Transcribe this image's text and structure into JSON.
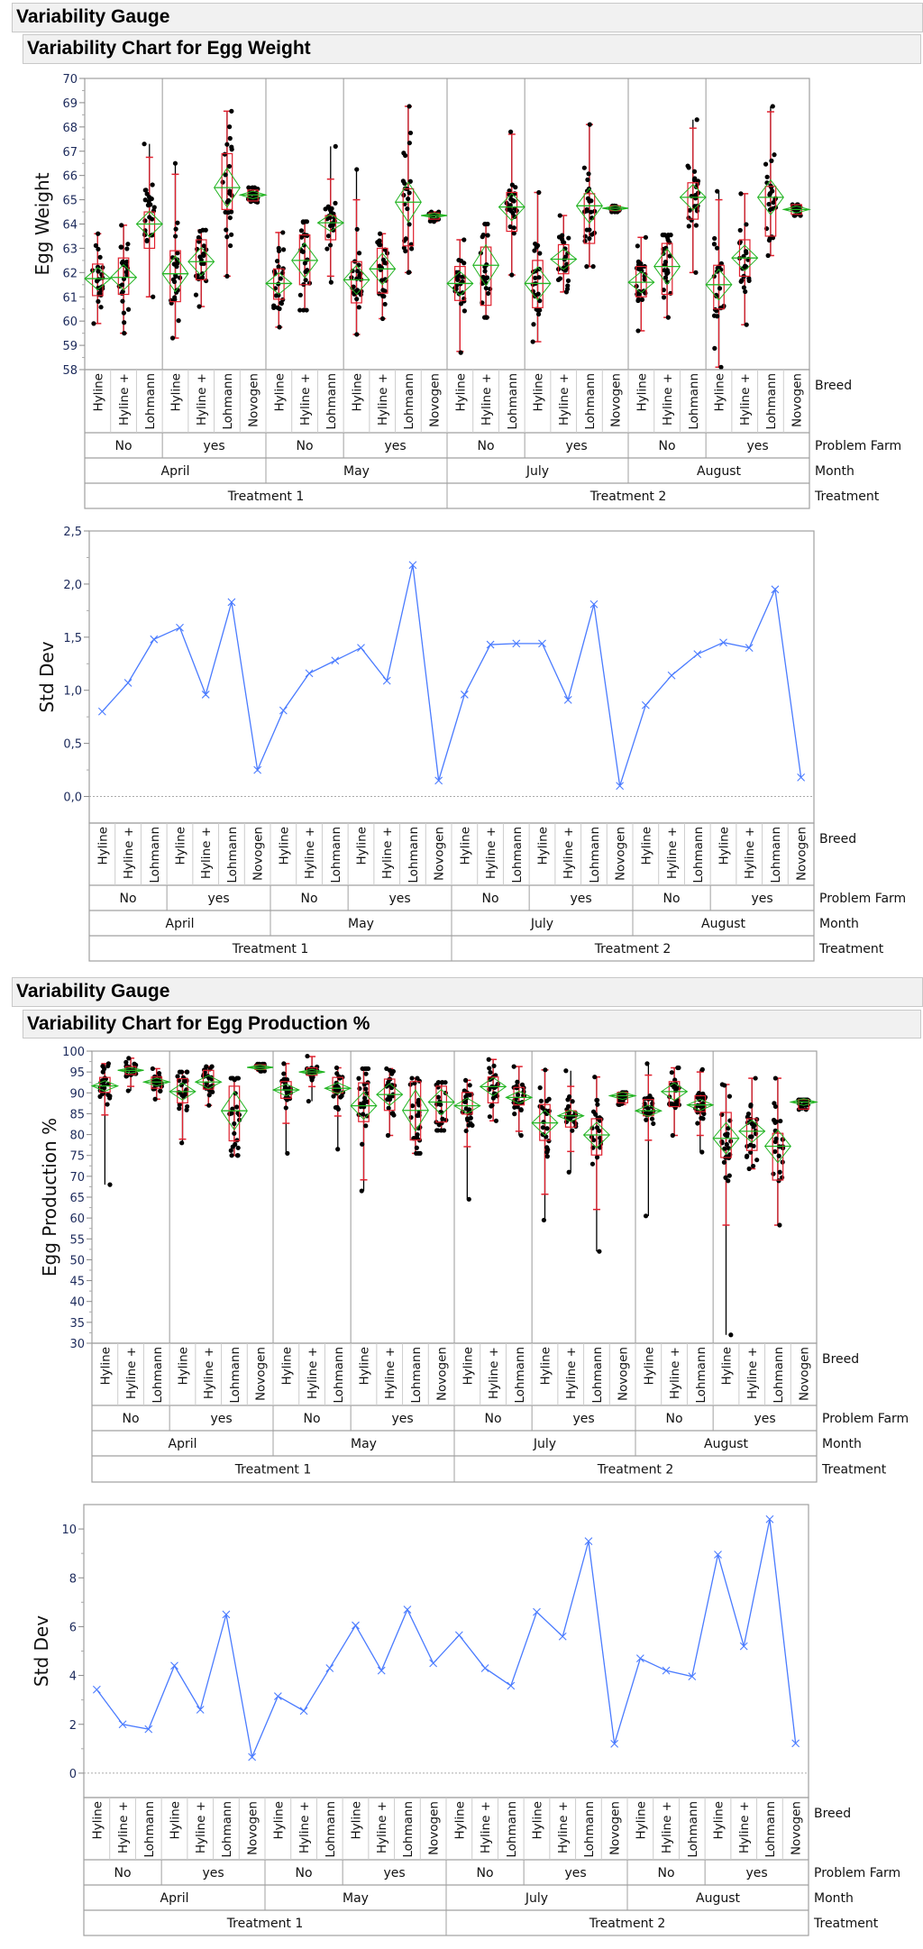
{
  "sections": [
    {
      "title": "Variability Gauge",
      "subtitle": "Variability Chart for Egg Weight"
    },
    {
      "title": "Variability Gauge",
      "subtitle": "Variability Chart for Egg Production %"
    }
  ],
  "factor_names": [
    "Breed",
    "Problem Farm",
    "Month",
    "Treatment"
  ],
  "factors": [
    {
      "treatment": "Treatment 1",
      "months": [
        {
          "month": "April",
          "farms": [
            {
              "farm": "No",
              "breeds": [
                "Hyline",
                "Hyline +",
                "Lohmann"
              ]
            },
            {
              "farm": "yes",
              "breeds": [
                "Hyline",
                "Hyline +",
                "Lohmann",
                "Novogen"
              ]
            }
          ]
        },
        {
          "month": "May",
          "farms": [
            {
              "farm": "No",
              "breeds": [
                "Hyline",
                "Hyline +",
                "Lohmann"
              ]
            },
            {
              "farm": "yes",
              "breeds": [
                "Hyline",
                "Hyline +",
                "Lohmann",
                "Novogen"
              ]
            }
          ]
        }
      ]
    },
    {
      "treatment": "Treatment 2",
      "months": [
        {
          "month": "July",
          "farms": [
            {
              "farm": "No",
              "breeds": [
                "Hyline",
                "Hyline +",
                "Lohmann"
              ]
            },
            {
              "farm": "yes",
              "breeds": [
                "Hyline",
                "Hyline +",
                "Lohmann",
                "Novogen"
              ]
            }
          ]
        },
        {
          "month": "August",
          "farms": [
            {
              "farm": "No",
              "breeds": [
                "Hyline",
                "Hyline +",
                "Lohmann"
              ]
            },
            {
              "farm": "yes",
              "breeds": [
                "Hyline",
                "Hyline +",
                "Lohmann",
                "Novogen"
              ]
            }
          ]
        }
      ]
    }
  ],
  "colors": {
    "box": "#e0202e",
    "diamond": "#22b422",
    "points": "#000000",
    "std_line": "#4a7bff",
    "tick_text": "#1d2b5c",
    "frame": "#a0a0a0"
  },
  "chart_data": [
    {
      "type": "box-jitter",
      "ylabel": "Egg Weight",
      "ylim": [
        58,
        70
      ],
      "yticks": [
        58,
        59,
        60,
        61,
        62,
        63,
        64,
        65,
        66,
        67,
        68,
        69,
        70
      ],
      "ytick_labels": [
        "58",
        "59",
        "60",
        "61",
        "62",
        "63",
        "64",
        "65",
        "66",
        "67",
        "68",
        "69",
        "70"
      ],
      "grid": false,
      "mean": [
        61.75,
        61.8,
        64.0,
        61.95,
        62.45,
        65.5,
        65.2,
        61.55,
        62.5,
        64.05,
        61.7,
        62.15,
        64.9,
        64.35,
        61.55,
        62.3,
        64.7,
        61.55,
        62.55,
        64.75,
        64.65,
        61.6,
        62.25,
        65.1,
        61.5,
        62.6,
        65.1,
        64.6
      ],
      "q1": [
        61.05,
        61.1,
        63.0,
        60.8,
        61.7,
        64.6,
        64.95,
        60.9,
        61.5,
        63.35,
        60.75,
        61.15,
        63.1,
        64.2,
        60.85,
        60.65,
        63.7,
        60.55,
        61.95,
        63.2,
        64.55,
        61.0,
        61.1,
        64.2,
        60.5,
        61.85,
        63.5,
        64.4
      ],
      "q3": [
        62.35,
        62.6,
        64.5,
        62.9,
        63.35,
        66.9,
        65.4,
        62.15,
        63.55,
        64.35,
        62.45,
        63.0,
        65.45,
        64.45,
        62.25,
        63.05,
        65.3,
        62.5,
        63.15,
        65.25,
        64.75,
        62.25,
        63.2,
        65.7,
        62.3,
        63.35,
        65.55,
        64.8
      ],
      "min": [
        59.9,
        59.5,
        61.0,
        59.3,
        60.6,
        61.85,
        64.9,
        59.75,
        60.45,
        61.6,
        59.45,
        60.1,
        62.0,
        64.1,
        58.7,
        60.15,
        61.9,
        59.15,
        61.2,
        62.25,
        64.5,
        59.6,
        60.15,
        62.0,
        58.1,
        59.85,
        62.7,
        64.35
      ],
      "max": [
        63.6,
        63.95,
        67.3,
        66.5,
        63.75,
        68.65,
        65.5,
        63.65,
        64.1,
        67.2,
        66.25,
        63.6,
        68.85,
        64.5,
        63.35,
        64.0,
        67.8,
        65.3,
        64.35,
        68.1,
        64.75,
        63.45,
        63.55,
        68.3,
        65.35,
        65.25,
        68.85,
        64.8
      ]
    },
    {
      "type": "line",
      "ylabel": "Std Dev",
      "ylim": [
        -0.25,
        2.5
      ],
      "yticks": [
        0,
        0.5,
        1.0,
        1.5,
        2.0,
        2.5
      ],
      "ytick_labels": [
        "0,0",
        "0,5",
        "1,0",
        "1,5",
        "2,0",
        "2,5"
      ],
      "reference_line": 0,
      "grid": false,
      "values": [
        0.8,
        1.07,
        1.48,
        1.59,
        0.96,
        1.83,
        0.25,
        0.81,
        1.16,
        1.28,
        1.4,
        1.09,
        2.18,
        0.15,
        0.96,
        1.43,
        1.44,
        1.44,
        0.91,
        1.81,
        0.1,
        0.86,
        1.14,
        1.34,
        1.45,
        1.4,
        1.95,
        0.18
      ]
    },
    {
      "type": "box-jitter",
      "ylabel": "Egg Production %",
      "ylim": [
        30,
        100
      ],
      "yticks": [
        30,
        35,
        40,
        45,
        50,
        55,
        60,
        65,
        70,
        75,
        80,
        85,
        90,
        95,
        100
      ],
      "ytick_labels": [
        "30",
        "35",
        "40",
        "45",
        "50",
        "55",
        "60",
        "65",
        "70",
        "75",
        "80",
        "85",
        "90",
        "95",
        "100"
      ],
      "grid": false,
      "mean": [
        91.65,
        95.4,
        92.6,
        90.3,
        92.6,
        85.7,
        96.1,
        90.7,
        95.0,
        91.1,
        86.9,
        89.6,
        85.8,
        87.8,
        86.9,
        91.5,
        88.9,
        82.8,
        84.5,
        79.9,
        89.3,
        85.7,
        90.3,
        87.1,
        79.1,
        80.8,
        77.2,
        87.8
      ],
      "q1": [
        90.1,
        94.4,
        91.1,
        87.6,
        90.9,
        78.5,
        95.6,
        88.7,
        94.2,
        90.0,
        83.1,
        85.8,
        78.7,
        83.0,
        84.9,
        87.6,
        87.1,
        78.6,
        81.8,
        75.1,
        87.6,
        84.5,
        86.7,
        85.5,
        74.5,
        76.2,
        69.1,
        86.1
      ],
      "q3": [
        93.7,
        96.3,
        93.8,
        93.4,
        95.4,
        91.6,
        96.7,
        92.7,
        96.0,
        93.7,
        92.4,
        93.3,
        92.7,
        91.6,
        90.1,
        93.8,
        91.3,
        87.2,
        85.7,
        83.8,
        90.1,
        88.4,
        92.7,
        89.3,
        85.3,
        83.8,
        80.3,
        88.4
      ],
      "min": [
        68.0,
        90.5,
        88.5,
        78.0,
        87.0,
        75.0,
        95.2,
        75.5,
        88.0,
        76.5,
        66.5,
        79.8,
        75.5,
        81.0,
        64.5,
        83.3,
        79.8,
        59.5,
        71.0,
        52.0,
        87.2,
        60.5,
        79.8,
        75.8,
        32.0,
        71.8,
        58.3,
        86.0
      ],
      "max": [
        97.0,
        98.3,
        95.8,
        95.0,
        96.3,
        93.5,
        96.9,
        97.0,
        98.8,
        96.0,
        95.8,
        95.8,
        93.5,
        92.5,
        93.0,
        98.0,
        96.3,
        95.5,
        95.3,
        93.8,
        90.1,
        97.0,
        96.0,
        95.6,
        92.0,
        93.5,
        93.5,
        88.3
      ]
    },
    {
      "type": "line",
      "ylabel": "Std Dev",
      "ylim": [
        -1,
        11
      ],
      "yticks": [
        0,
        2,
        4,
        6,
        8,
        10
      ],
      "ytick_labels": [
        "0",
        "2",
        "4",
        "6",
        "8",
        "10"
      ],
      "reference_line": 0,
      "grid": false,
      "values": [
        3.42,
        2.0,
        1.8,
        4.4,
        2.6,
        6.5,
        0.66,
        3.15,
        2.55,
        4.3,
        6.05,
        4.2,
        6.7,
        4.5,
        5.65,
        4.3,
        3.58,
        6.6,
        5.6,
        9.5,
        1.2,
        4.7,
        4.2,
        3.96,
        8.95,
        5.2,
        10.4,
        1.22
      ]
    }
  ]
}
